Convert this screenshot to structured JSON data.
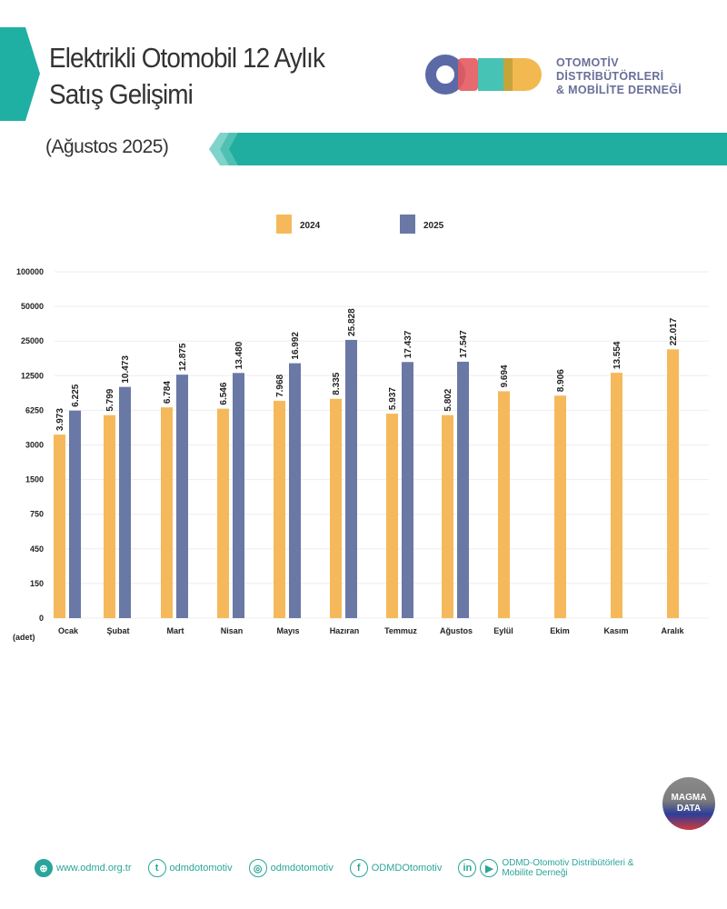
{
  "header": {
    "title_line1": "Elektrikli Otomobil 12 Aylık",
    "title_line2": "Satış Gelişimi",
    "subtitle": "(Ağustos 2025)",
    "logo_text": "ODMD",
    "org_line1": "OTOMOTİV",
    "org_line2": "DİSTRİBÜTÖRLERİ",
    "org_line3": "& MOBİLİTE DERNEĞİ",
    "accent_color": "#1fb0a3"
  },
  "chart_data": {
    "type": "bar",
    "title": "Elektrikli Otomobil 12 Aylık Satış Gelişimi",
    "ylabel": "(adet)",
    "y_scale": "non-linear (custom tick spacing)",
    "y_ticks": [
      "0",
      "150",
      "450",
      "750",
      "1500",
      "3000",
      "6250",
      "12500",
      "25000",
      "50000",
      "100000"
    ],
    "ylim": [
      0,
      100000
    ],
    "grid": true,
    "legend_position": "top",
    "categories": [
      "Ocak",
      "Şubat",
      "Mart",
      "Nisan",
      "Mayıs",
      "Hazıran",
      "Temmuz",
      "Ağustos",
      "Eylül",
      "Ekim",
      "Kasım",
      "Aralık"
    ],
    "series": [
      {
        "name": "2024",
        "color": "#f5b95c",
        "values": [
          3973,
          5799,
          6784,
          6546,
          7968,
          8335,
          5937,
          5802,
          9694,
          8906,
          13554,
          22017
        ],
        "labels": [
          "3.973",
          "5.799",
          "6.784",
          "6.546",
          "7.968",
          "8.335",
          "5.937",
          "5.802",
          "9.694",
          "8.906",
          "13.554",
          "22.017"
        ]
      },
      {
        "name": "2025",
        "color": "#6a78a6",
        "values": [
          6225,
          10473,
          12875,
          13480,
          16992,
          25828,
          17437,
          17547,
          null,
          null,
          null,
          null
        ],
        "labels": [
          "6.225",
          "10.473",
          "12.875",
          "13.480",
          "16.992",
          "25.828",
          "17.437",
          "17.547",
          null,
          null,
          null,
          null
        ]
      }
    ]
  },
  "badge": {
    "line1": "MAGMA",
    "line2": "DATA"
  },
  "footer": {
    "website": "www.odmd.org.tr",
    "twitter": "odmdotomotiv",
    "instagram": "odmdotomotiv",
    "facebook": "ODMDOtomotiv",
    "linkedin_youtube": "ODMD-Otomotiv Distribütörleri & Mobilite Derneği"
  }
}
